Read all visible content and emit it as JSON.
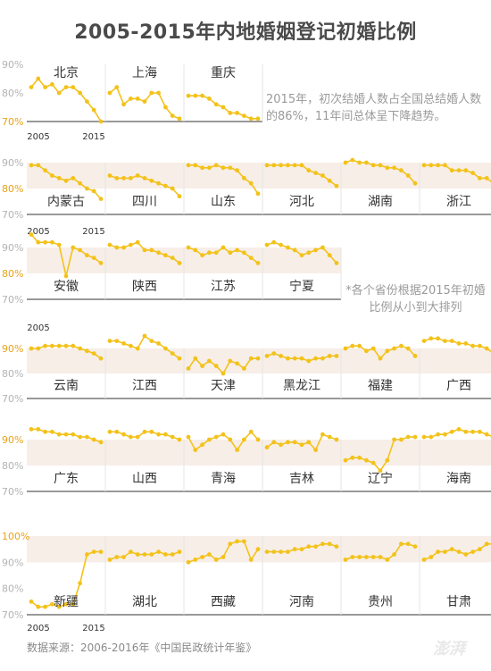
{
  "title": "2005-2015年内地婚姻登记初婚比例",
  "note_main": "2015年，初次结婚人数占全国总结婚人数的86%，11年间总体呈下降趋势。",
  "note_order": "*各个省份根据2015年初婚比例从小到大排列",
  "source": "数据来源：2006-2016年《中国民政统计年鉴》",
  "watermark": "澎湃",
  "colors": {
    "line": "#f3c21a",
    "band": "#f7eee7",
    "axis": "#333333",
    "tick": "#b3b3b3",
    "highlight_tick": "#e8a318",
    "label": "#333333"
  },
  "chart_data": {
    "type": "line",
    "x": [
      2005,
      2006,
      2007,
      2008,
      2009,
      2010,
      2011,
      2012,
      2013,
      2014,
      2015
    ],
    "row_axes": [
      {
        "ticks": [
          70,
          80,
          90
        ],
        "tick_labels": [
          "70%",
          "80%",
          "90%"
        ],
        "ylim": [
          70,
          90
        ],
        "highlight": "70%",
        "x_tick_labels": [
          "2005",
          "2015"
        ]
      },
      {
        "ticks": [
          70,
          80,
          90
        ],
        "tick_labels": [
          "70%",
          "80%",
          "90%"
        ],
        "ylim": [
          70,
          90
        ],
        "highlight": "80%",
        "x_tick_labels": [
          "2005",
          "2015"
        ]
      },
      {
        "ticks": [
          70,
          80,
          90
        ],
        "tick_labels": [
          "70%",
          "80%",
          "90%"
        ],
        "ylim": [
          70,
          90
        ],
        "highlight": "80%",
        "x_tick_labels": [
          "2005",
          ""
        ]
      },
      {
        "ticks": [
          70,
          80,
          90
        ],
        "tick_labels": [
          "70%",
          "80%",
          "90%"
        ],
        "ylim": [
          70,
          90
        ],
        "highlight": "90%",
        "x_tick_labels": [
          "",
          ""
        ]
      },
      {
        "ticks": [
          70,
          80,
          90
        ],
        "tick_labels": [
          "70%",
          "80%",
          "90%"
        ],
        "ylim": [
          70,
          90
        ],
        "highlight": "90%",
        "x_tick_labels": [
          "",
          ""
        ]
      },
      {
        "ticks": [
          70,
          80,
          90,
          100
        ],
        "tick_labels": [
          "70%",
          "80%",
          "90%",
          "100%"
        ],
        "ylim": [
          70,
          100
        ],
        "highlight": "100%",
        "x_tick_labels": [
          "2005",
          "2015"
        ]
      }
    ],
    "series": [
      {
        "name": "北京",
        "values": [
          82,
          85,
          82,
          83,
          80,
          82,
          82,
          80,
          77,
          74,
          70
        ]
      },
      {
        "name": "上海",
        "values": [
          80,
          82,
          76,
          78,
          78,
          77,
          80,
          80,
          75,
          72,
          71
        ]
      },
      {
        "name": "重庆",
        "values": [
          79,
          79,
          79,
          78,
          76,
          75,
          73,
          73,
          72,
          71,
          71
        ]
      },
      {
        "name": "内蒙古",
        "values": [
          89,
          89,
          87,
          85,
          84,
          83,
          84,
          82,
          80,
          79,
          76
        ]
      },
      {
        "name": "四川",
        "values": [
          85,
          84,
          84,
          84,
          85,
          84,
          83,
          82,
          81,
          80,
          77
        ]
      },
      {
        "name": "山东",
        "values": [
          89,
          89,
          88,
          88,
          89,
          88,
          88,
          87,
          84,
          82,
          78
        ]
      },
      {
        "name": "河北",
        "values": [
          89,
          89,
          89,
          89,
          89,
          89,
          87,
          86,
          85,
          83,
          81
        ]
      },
      {
        "name": "湖南",
        "values": [
          90,
          91,
          90,
          90,
          89,
          89,
          88,
          88,
          87,
          85,
          82
        ]
      },
      {
        "name": "浙江",
        "values": [
          89,
          89,
          89,
          89,
          87,
          87,
          87,
          86,
          84,
          84,
          82
        ]
      },
      {
        "name": "安徽",
        "values": [
          95,
          92,
          92,
          92,
          91,
          79,
          90,
          89,
          87,
          86,
          84
        ]
      },
      {
        "name": "陕西",
        "values": [
          91,
          90,
          90,
          91,
          92,
          89,
          89,
          88,
          87,
          86,
          84
        ]
      },
      {
        "name": "江苏",
        "values": [
          90,
          89,
          87,
          88,
          88,
          90,
          88,
          89,
          88,
          86,
          84
        ]
      },
      {
        "name": "宁夏",
        "values": [
          91,
          92,
          91,
          90,
          89,
          87,
          88,
          89,
          90,
          87,
          84
        ]
      },
      {
        "name": "云南",
        "values": [
          90,
          90,
          91,
          91,
          91,
          91,
          91,
          90,
          89,
          88,
          86
        ]
      },
      {
        "name": "江西",
        "values": [
          93,
          93,
          92,
          91,
          90,
          95,
          93,
          92,
          90,
          88,
          86
        ]
      },
      {
        "name": "天津",
        "values": [
          82,
          86,
          83,
          85,
          83,
          80,
          85,
          84,
          82,
          86,
          86
        ]
      },
      {
        "name": "黑龙江",
        "values": [
          87,
          88,
          87,
          86,
          86,
          86,
          85,
          86,
          86,
          87,
          87
        ]
      },
      {
        "name": "福建",
        "values": [
          90,
          91,
          91,
          89,
          90,
          86,
          89,
          90,
          91,
          90,
          87
        ]
      },
      {
        "name": "广西",
        "values": [
          93,
          94,
          94,
          93,
          93,
          92,
          92,
          91,
          91,
          90,
          88
        ]
      },
      {
        "name": "广东",
        "values": [
          94,
          94,
          93,
          93,
          92,
          92,
          92,
          91,
          91,
          90,
          89
        ]
      },
      {
        "name": "山西",
        "values": [
          93,
          93,
          92,
          91,
          91,
          93,
          93,
          92,
          92,
          91,
          90
        ]
      },
      {
        "name": "青海",
        "values": [
          91,
          86,
          88,
          90,
          91,
          92,
          90,
          86,
          90,
          93,
          90
        ]
      },
      {
        "name": "吉林",
        "values": [
          87,
          89,
          88,
          89,
          89,
          88,
          89,
          86,
          92,
          91,
          90
        ]
      },
      {
        "name": "辽宁",
        "values": [
          82,
          83,
          83,
          82,
          81,
          78,
          82,
          90,
          90,
          91,
          91
        ]
      },
      {
        "name": "海南",
        "values": [
          91,
          91,
          92,
          92,
          93,
          94,
          93,
          93,
          93,
          92,
          91
        ]
      },
      {
        "name": "新疆",
        "values": [
          75,
          73,
          73,
          74,
          73,
          74,
          74,
          82,
          93,
          94,
          94
        ]
      },
      {
        "name": "湖北",
        "values": [
          91,
          92,
          92,
          94,
          93,
          93,
          93,
          94,
          93,
          93,
          94
        ]
      },
      {
        "name": "西藏",
        "values": [
          90,
          91,
          92,
          93,
          91,
          92,
          97,
          98,
          98,
          91,
          95
        ]
      },
      {
        "name": "河南",
        "values": [
          94,
          94,
          94,
          94,
          95,
          95,
          96,
          96,
          97,
          97,
          96
        ]
      },
      {
        "name": "贵州",
        "values": [
          91,
          92,
          92,
          92,
          92,
          92,
          91,
          93,
          97,
          97,
          96
        ]
      },
      {
        "name": "甘肃",
        "values": [
          91,
          92,
          94,
          94,
          95,
          94,
          93,
          94,
          95,
          97,
          97
        ]
      }
    ],
    "rows": [
      [
        0,
        1,
        2
      ],
      [
        3,
        4,
        5,
        6,
        7,
        8
      ],
      [
        9,
        10,
        11,
        12
      ],
      [
        13,
        14,
        15,
        16,
        17,
        18
      ],
      [
        19,
        20,
        21,
        22,
        23,
        24
      ],
      [
        25,
        26,
        27,
        28,
        29,
        30
      ]
    ]
  }
}
